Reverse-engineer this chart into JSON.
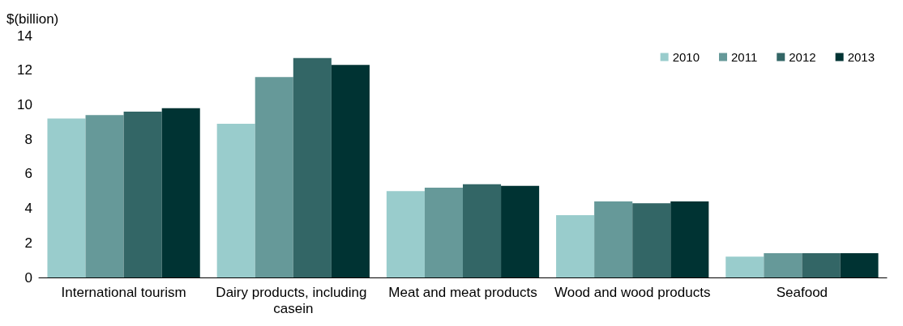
{
  "chart_data": {
    "type": "bar",
    "ylabel": "$(billion)",
    "categories": [
      "International tourism",
      "Dairy products, including casein",
      "Meat and meat products",
      "Wood and wood products",
      "Seafood"
    ],
    "series": [
      {
        "name": "2010",
        "color": "#99cccc",
        "values": [
          9.2,
          8.9,
          5.0,
          3.6,
          1.2
        ]
      },
      {
        "name": "2011",
        "color": "#669999",
        "values": [
          9.4,
          11.6,
          5.2,
          4.4,
          1.4
        ]
      },
      {
        "name": "2012",
        "color": "#336666",
        "values": [
          9.6,
          12.7,
          5.4,
          4.3,
          1.4
        ]
      },
      {
        "name": "2013",
        "color": "#003333",
        "values": [
          9.8,
          12.3,
          5.3,
          4.4,
          1.4
        ]
      }
    ],
    "ylim": [
      0,
      14
    ],
    "yticks": [
      0,
      2,
      4,
      6,
      8,
      10,
      12,
      14
    ],
    "grid": false,
    "legend": "top right"
  }
}
